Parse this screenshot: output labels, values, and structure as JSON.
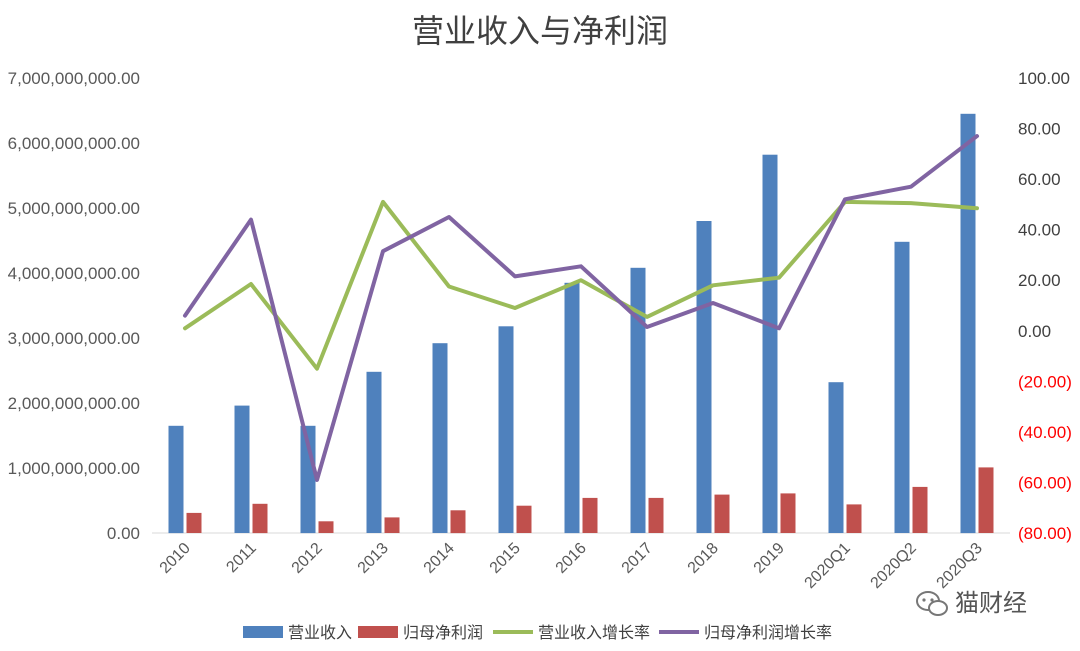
{
  "watermark": {
    "text": "猫财经",
    "icon": "wechat-icon"
  },
  "chart_data": {
    "type": "bar",
    "title": "营业收入与净利润",
    "categories": [
      "2010",
      "2011",
      "2012",
      "2013",
      "2014",
      "2015",
      "2016",
      "2017",
      "2018",
      "2019",
      "2020Q1",
      "2020Q2",
      "2020Q3"
    ],
    "series": [
      {
        "name": "营业收入",
        "kind": "bar",
        "axis": "left",
        "color": "#4F81BD",
        "values": [
          1650000000,
          1960000000,
          1650000000,
          2480000000,
          2920000000,
          3180000000,
          3850000000,
          4080000000,
          4800000000,
          5820000000,
          2320000000,
          4480000000,
          6450000000
        ]
      },
      {
        "name": "归母净利润",
        "kind": "bar",
        "axis": "left",
        "color": "#C0504D",
        "values": [
          310000000,
          450000000,
          180000000,
          240000000,
          350000000,
          420000000,
          540000000,
          540000000,
          590000000,
          610000000,
          440000000,
          710000000,
          1010000000
        ]
      },
      {
        "name": "营业收入增长率",
        "kind": "line",
        "axis": "right",
        "color": "#9BBB59",
        "values": [
          1.0,
          18.5,
          -15.0,
          51.0,
          17.5,
          9.0,
          20.0,
          5.5,
          18.0,
          21.0,
          51.0,
          50.5,
          48.5
        ]
      },
      {
        "name": "归母净利润增长率",
        "kind": "line",
        "axis": "right",
        "color": "#8064A2",
        "values": [
          6.0,
          44.0,
          -59.0,
          31.5,
          45.0,
          21.5,
          25.5,
          1.5,
          11.0,
          1.0,
          52.0,
          57.0,
          77.0
        ]
      }
    ],
    "y_left": {
      "ylim": [
        0,
        7000000000
      ],
      "ticks": [
        "0.00",
        "1,000,000,000.00",
        "2,000,000,000.00",
        "3,000,000,000.00",
        "4,000,000,000.00",
        "5,000,000,000.00",
        "6,000,000,000.00",
        "7,000,000,000.00"
      ]
    },
    "y_right": {
      "ylim": [
        -80,
        100
      ],
      "ticks": [
        "(80.00)",
        "(60.00)",
        "(40.00)",
        "(20.00)",
        "0.00",
        "20.00",
        "40.00",
        "60.00",
        "80.00",
        "100.00"
      ],
      "negative_color": "#FF0000",
      "positive_color": "#404040"
    },
    "grid": false,
    "legend": "bottom"
  }
}
